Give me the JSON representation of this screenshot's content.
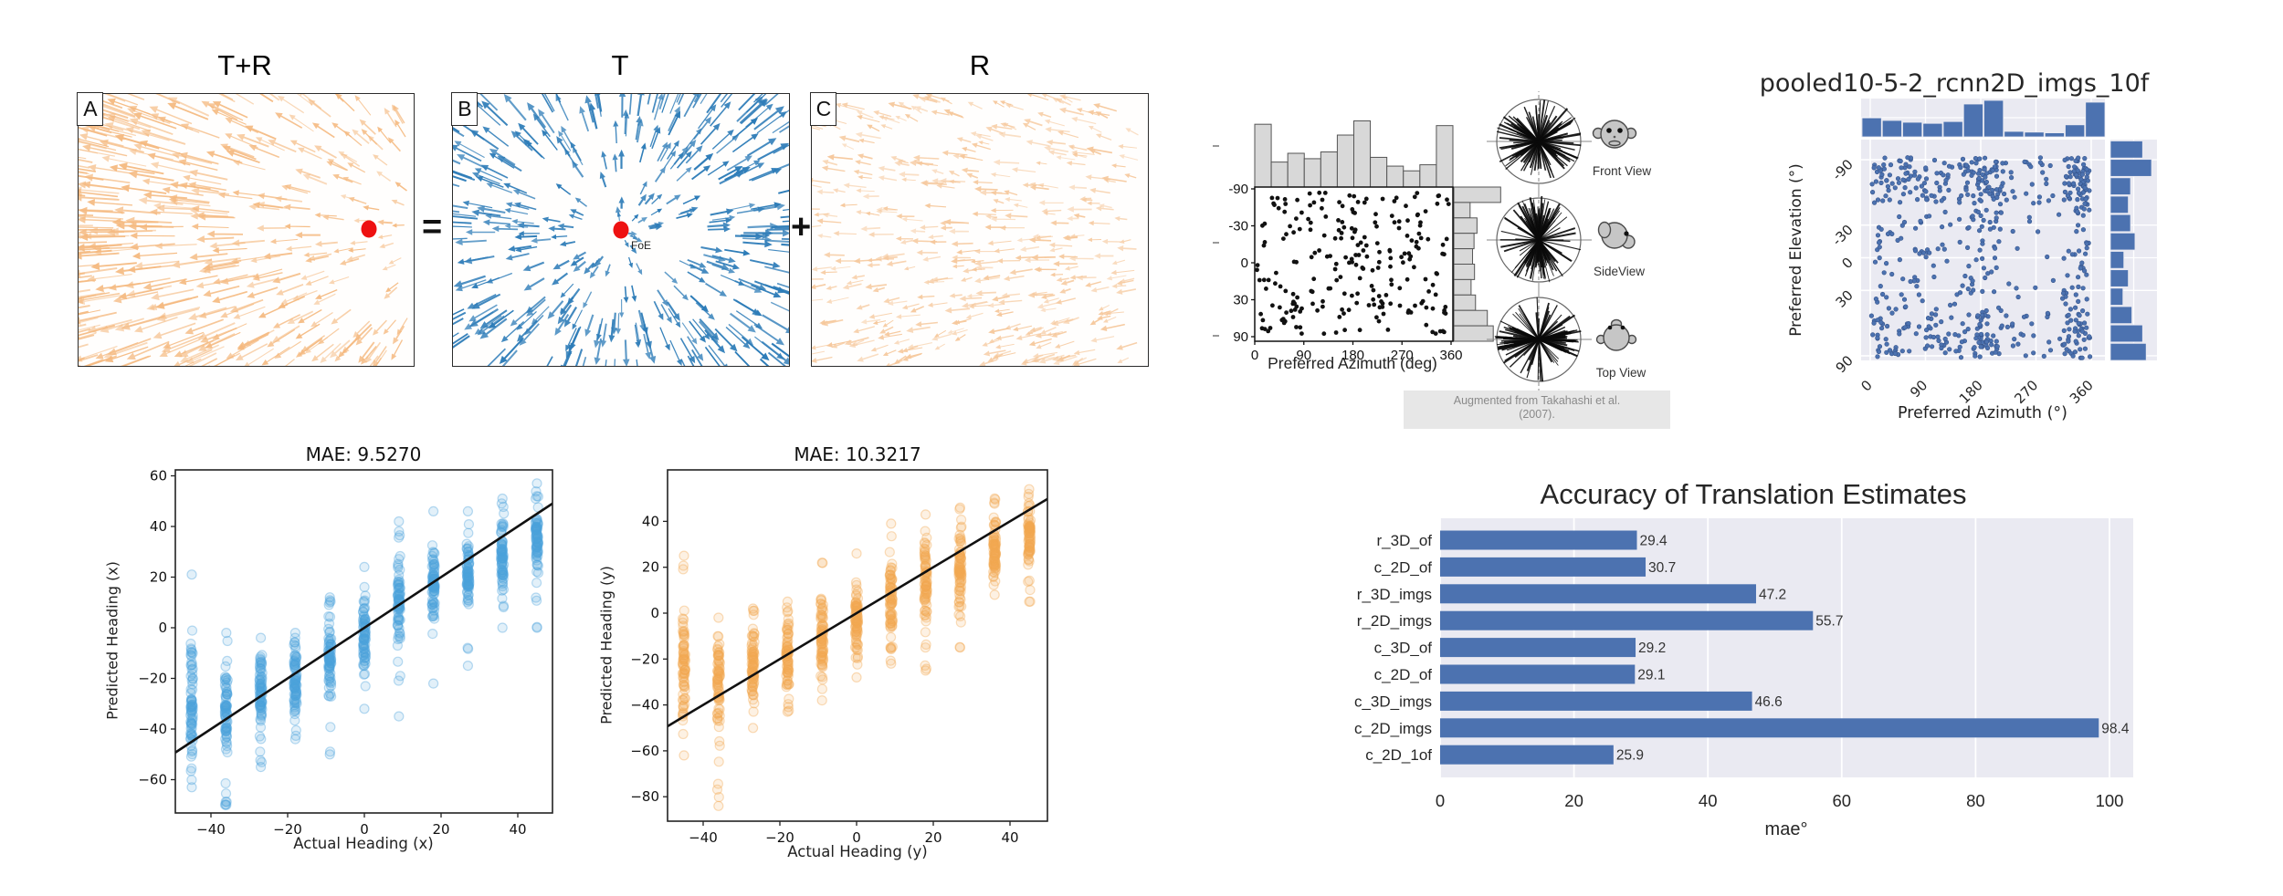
{
  "flow_figure": {
    "titles": [
      "T+R",
      "T",
      "R"
    ],
    "panel_labels": [
      "A",
      "B",
      "C"
    ],
    "equals": "=",
    "plus": "+",
    "foe_label": "FoE",
    "colors": {
      "orange": "#f5b97f",
      "blue": "#2d7cb8",
      "pale_orange": "#f6c79a",
      "dot_red": "#ee1111"
    }
  },
  "takahashi": {
    "views": [
      {
        "label": "Front View"
      },
      {
        "label": "SideView"
      },
      {
        "label": "Top View"
      }
    ],
    "caption_line1": "Augmented from Takahashi et al.",
    "caption_line2": "(2007)."
  },
  "chart_data": [
    {
      "id": "takahashi_scatter",
      "type": "scatter",
      "xlabel": "Preferred Azimuth (deg)",
      "x_ticks": [
        0,
        90,
        180,
        270,
        360
      ],
      "y_ticks": [
        -90,
        -30,
        0,
        30,
        90
      ],
      "xlim": [
        0,
        360
      ],
      "ylim": [
        -90,
        90
      ],
      "y_spacing": "sine",
      "n_points": 235,
      "point_color": "#111111",
      "hist_fill": "#d8d8d8",
      "hist_edge": "#555555",
      "marginal_top_heights": [
        0.93,
        0.37,
        0.5,
        0.42,
        0.52,
        0.77,
        0.98,
        0.44,
        0.31,
        0.24,
        0.33,
        0.91
      ],
      "marginal_right_widths": [
        0.95,
        0.33,
        0.47,
        0.41,
        0.38,
        0.42,
        0.35,
        0.44,
        0.68,
        0.8
      ]
    },
    {
      "id": "pooled_jointplot",
      "type": "scatter",
      "title": "pooled10-5-2_rcnn2D_imgs_10f",
      "xlabel": "Preferred Azimuth (°)",
      "ylabel": "Preferred Elevation (°)",
      "x_ticks": [
        0,
        90,
        180,
        270,
        360
      ],
      "y_ticks": [
        -90,
        -30,
        0,
        30,
        90
      ],
      "xlim": [
        0,
        360
      ],
      "ylim": [
        -90,
        90
      ],
      "n_points": 620,
      "point_color": "#4c72b0",
      "point_edge": "#35538a",
      "bg": "#eaeaf2",
      "marginal_top_heights": [
        0.52,
        0.45,
        0.4,
        0.37,
        0.42,
        0.9,
        1.0,
        0.15,
        0.13,
        0.11,
        0.33,
        0.95
      ],
      "marginal_right_widths": [
        0.72,
        0.92,
        0.45,
        0.4,
        0.45,
        0.55,
        0.3,
        0.4,
        0.28,
        0.48,
        0.72,
        0.8
      ]
    },
    {
      "id": "mae_x",
      "type": "scatter",
      "title": "MAE: 9.5270",
      "xlabel": "Actual Heading (x)",
      "ylabel": "Predicted Heading (x)",
      "x_ticks": [
        -40,
        -20,
        0,
        20,
        40
      ],
      "y_ticks": [
        60,
        40,
        20,
        0,
        -20,
        -40,
        -60
      ],
      "color": "#4da3dc",
      "line": {
        "from": [
          -49,
          -49
        ],
        "to": [
          49,
          49
        ]
      },
      "columns": [
        {
          "x": -45,
          "top": 21,
          "bot": -63,
          "dtop": -5,
          "dbot": -50
        },
        {
          "x": -36,
          "top": -2,
          "bot": -70,
          "dtop": -12,
          "dbot": -52
        },
        {
          "x": -27,
          "top": -4,
          "bot": -55,
          "dtop": -8,
          "dbot": -45
        },
        {
          "x": -18,
          "top": -2,
          "bot": -44,
          "dtop": -4,
          "dbot": -36
        },
        {
          "x": -9,
          "top": 12,
          "bot": -50,
          "dtop": 2,
          "dbot": -30
        },
        {
          "x": 0,
          "top": 24,
          "bot": -32,
          "dtop": 12,
          "dbot": -20
        },
        {
          "x": 9,
          "top": 42,
          "bot": -35,
          "dtop": 28,
          "dbot": -8
        },
        {
          "x": 18,
          "top": 46,
          "bot": -22,
          "dtop": 33,
          "dbot": 3
        },
        {
          "x": 27,
          "top": 46,
          "bot": -15,
          "dtop": 36,
          "dbot": 10
        },
        {
          "x": 36,
          "top": 51,
          "bot": 0,
          "dtop": 43,
          "dbot": 14
        },
        {
          "x": 45,
          "top": 57,
          "bot": 0,
          "dtop": 49,
          "dbot": 21
        }
      ]
    },
    {
      "id": "mae_y",
      "type": "scatter",
      "title": "MAE: 10.3217",
      "xlabel": "Actual Heading (y)",
      "ylabel": "Predicted Heading (y)",
      "x_ticks": [
        -40,
        -20,
        0,
        20,
        40
      ],
      "y_ticks": [
        40,
        20,
        0,
        -20,
        -40,
        -60,
        -80
      ],
      "color": "#f2a851",
      "line": {
        "from": [
          -49,
          -49
        ],
        "to": [
          49,
          49
        ]
      },
      "columns": [
        {
          "x": -45,
          "top": 25,
          "bot": -62,
          "dtop": 5,
          "dbot": -50
        },
        {
          "x": -36,
          "top": -2,
          "bot": -84,
          "dtop": -8,
          "dbot": -52
        },
        {
          "x": -27,
          "top": 2,
          "bot": -50,
          "dtop": -5,
          "dbot": -43
        },
        {
          "x": -18,
          "top": 5,
          "bot": -43,
          "dtop": 0,
          "dbot": -38
        },
        {
          "x": -9,
          "top": 22,
          "bot": -38,
          "dtop": 8,
          "dbot": -32
        },
        {
          "x": 0,
          "top": 26,
          "bot": -28,
          "dtop": 14,
          "dbot": -24
        },
        {
          "x": 9,
          "top": 39,
          "bot": -22,
          "dtop": 28,
          "dbot": -18
        },
        {
          "x": 18,
          "top": 43,
          "bot": -25,
          "dtop": 34,
          "dbot": -8
        },
        {
          "x": 27,
          "top": 46,
          "bot": -15,
          "dtop": 40,
          "dbot": -2
        },
        {
          "x": 36,
          "top": 50,
          "bot": 8,
          "dtop": 45,
          "dbot": 12
        },
        {
          "x": 45,
          "top": 54,
          "bot": 5,
          "dtop": 48,
          "dbot": 18
        }
      ]
    },
    {
      "id": "translation_accuracy",
      "type": "bar",
      "orientation": "horizontal",
      "title": "Accuracy of Translation Estimates",
      "xlabel": "mae°",
      "x_ticks": [
        0,
        20,
        40,
        60,
        80,
        100
      ],
      "xlim": [
        0,
        103.5
      ],
      "categories": [
        "r_3D_of",
        "c_2D_of",
        "r_3D_imgs",
        "r_2D_imgs",
        "c_3D_of",
        "c_2D_of",
        "c_3D_imgs",
        "c_2D_imgs",
        "c_2D_1of"
      ],
      "values": [
        29.4,
        30.7,
        47.2,
        55.7,
        29.2,
        29.1,
        46.6,
        98.4,
        25.9
      ],
      "bar_color": "#4c72b0",
      "bg": "#eaeaf2",
      "grid": "on",
      "legend": "none"
    }
  ]
}
